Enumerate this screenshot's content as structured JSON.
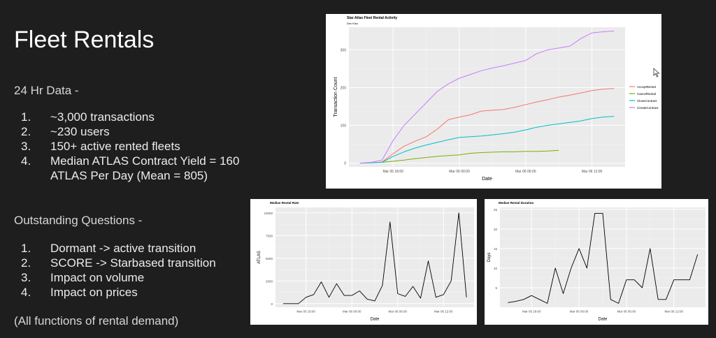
{
  "slide": {
    "title": "Fleet Rentals",
    "section1": "24 Hr Data -",
    "data_items": [
      {
        "num": "1.",
        "text": "~3,000 transactions"
      },
      {
        "num": "2.",
        "text": "~230 users"
      },
      {
        "num": "3.",
        "text": "150+ active rented fleets"
      },
      {
        "num": "4.",
        "text": "Median ATLAS Contract Yield = 160 ATLAS Per Day (Mean = 805)"
      }
    ],
    "section2": "Outstanding Questions -",
    "question_items": [
      {
        "num": "1.",
        "text": "Dormant -> active transition"
      },
      {
        "num": "2.",
        "text": "SCORE -> Starbased transition"
      },
      {
        "num": "3.",
        "text": "Impact on volume"
      },
      {
        "num": "4.",
        "text": "Impact on prices"
      }
    ],
    "footer": "(All functions of rental demand)"
  },
  "colors": {
    "AcceptRental": "#f8766d",
    "CancelRental": "#7cae00",
    "CloseContract": "#00bfc4",
    "CreateContract": "#c77cff",
    "panel_bg": "#ebebeb",
    "line_black": "#000000"
  },
  "chart_data": [
    {
      "type": "line",
      "title": "Star Atlas Fleet Rental Activity",
      "subtitle": "Dev Kiss",
      "xlabel": "Date",
      "ylabel": "Transaction Count",
      "x_ticks": [
        "Mar 05 18:00",
        "Mar 06 00:00",
        "Mar 06 06:00",
        "Mar 06 12:00"
      ],
      "x_tick_hours": [
        3,
        9,
        15,
        21
      ],
      "xlim": [
        -1,
        24
      ],
      "ylim": [
        -10,
        360
      ],
      "y_ticks": [
        0,
        100,
        200,
        300
      ],
      "legend_position": "right",
      "grid": true,
      "series": [
        {
          "name": "AcceptRental",
          "color": "#f8766d",
          "x": [
            0,
            1,
            2,
            3,
            4,
            5,
            6,
            7,
            8,
            9,
            10,
            11,
            12,
            13,
            14,
            15,
            16,
            17,
            18,
            19,
            20,
            21,
            22,
            23
          ],
          "y": [
            0,
            1,
            3,
            25,
            45,
            58,
            70,
            90,
            115,
            122,
            128,
            138,
            140,
            142,
            148,
            155,
            162,
            168,
            175,
            180,
            186,
            192,
            196,
            198
          ]
        },
        {
          "name": "CancelRental",
          "color": "#7cae00",
          "x": [
            2,
            3,
            4,
            5,
            6,
            7,
            8,
            9,
            10,
            11,
            12,
            13,
            14,
            15,
            16,
            17,
            18
          ],
          "y": [
            2,
            5,
            8,
            12,
            15,
            18,
            20,
            22,
            26,
            28,
            29,
            30,
            30,
            31,
            31,
            32,
            34
          ]
        },
        {
          "name": "CloseContract",
          "color": "#00bfc4",
          "x": [
            0,
            1,
            2,
            3,
            4,
            5,
            6,
            7,
            8,
            9,
            10,
            11,
            12,
            13,
            14,
            15,
            16,
            17,
            18,
            19,
            20,
            21,
            22,
            23
          ],
          "y": [
            0,
            1,
            2,
            18,
            30,
            40,
            48,
            55,
            62,
            68,
            70,
            72,
            75,
            78,
            82,
            88,
            95,
            100,
            104,
            108,
            112,
            118,
            122,
            124
          ]
        },
        {
          "name": "CreateContract",
          "color": "#c77cff",
          "x": [
            0,
            1,
            2,
            3,
            4,
            5,
            6,
            7,
            8,
            9,
            10,
            11,
            12,
            13,
            14,
            15,
            16,
            17,
            18,
            19,
            20,
            21,
            22,
            23
          ],
          "y": [
            0,
            2,
            8,
            60,
            100,
            130,
            160,
            190,
            210,
            225,
            235,
            245,
            252,
            258,
            265,
            272,
            290,
            300,
            305,
            310,
            330,
            345,
            348,
            350
          ]
        }
      ]
    },
    {
      "type": "line",
      "title": "Median Rental Rate",
      "xlabel": "Date",
      "ylabel": "ATLAS",
      "x_ticks": [
        "Mar 05 18:00",
        "Mar 06 00:00",
        "Mar 06 06:00",
        "Mar 06 12:00"
      ],
      "x_tick_hours": [
        3,
        9,
        15,
        21
      ],
      "xlim": [
        -1,
        25
      ],
      "ylim": [
        -400,
        10600
      ],
      "y_ticks": [
        0,
        2500,
        5000,
        7500,
        10000
      ],
      "grid": true,
      "series": [
        {
          "name": "",
          "color": "#000000",
          "x": [
            0,
            1,
            2,
            3,
            4,
            5,
            6,
            7,
            8,
            9,
            10,
            11,
            12,
            13,
            14,
            15,
            16,
            17,
            18,
            19,
            20,
            21,
            22,
            23,
            24
          ],
          "y": [
            0,
            0,
            0,
            700,
            1000,
            2400,
            700,
            2200,
            900,
            900,
            1400,
            500,
            300,
            2000,
            9000,
            1100,
            800,
            1900,
            600,
            4700,
            700,
            1000,
            2500,
            10000,
            700
          ]
        }
      ]
    },
    {
      "type": "line",
      "title": "Median Rental Duration",
      "xlabel": "Date",
      "ylabel": "Days",
      "x_ticks": [
        "Mar 05 18:00",
        "Mar 06 00:00",
        "Mar 06 06:00",
        "Mar 06 12:00"
      ],
      "x_tick_hours": [
        3,
        9,
        15,
        21
      ],
      "xlim": [
        -1,
        25
      ],
      "ylim": [
        0,
        25.5
      ],
      "y_ticks": [
        5,
        10,
        15,
        20,
        25
      ],
      "grid": true,
      "series": [
        {
          "name": "",
          "color": "#000000",
          "x": [
            0,
            1,
            2,
            3,
            4,
            5,
            6,
            7,
            8,
            9,
            10,
            11,
            12,
            13,
            14,
            15,
            16,
            17,
            18,
            19,
            20,
            21,
            22,
            23,
            24
          ],
          "y": [
            1.2,
            1.5,
            2,
            3,
            2,
            1,
            10,
            3.5,
            10,
            15,
            10,
            24,
            24,
            2,
            1,
            7,
            7,
            5,
            15,
            2,
            2,
            7,
            7,
            7,
            13.5
          ]
        }
      ]
    }
  ]
}
